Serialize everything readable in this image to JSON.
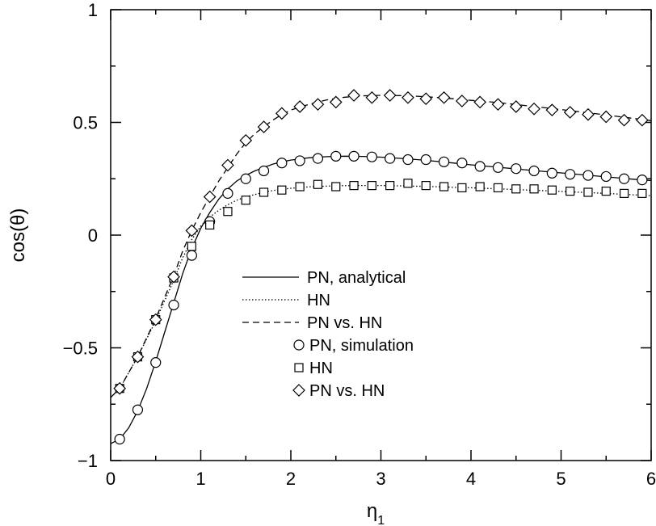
{
  "chart_data": {
    "type": "line",
    "xlabel": "η",
    "xlabel_sub": "1",
    "ylabel": "cos(θ)",
    "xlim": [
      0,
      6
    ],
    "ylim": [
      -1,
      1
    ],
    "xticks": [
      "0",
      "1",
      "2",
      "3",
      "4",
      "5",
      "6"
    ],
    "yticks": [
      "−1",
      "−0.5",
      "0",
      "0.5",
      "1"
    ],
    "grid": false,
    "legend_position": "center",
    "series": [
      {
        "name": "PN, analytical",
        "style": "solid",
        "x": [
          0.0,
          0.1,
          0.2,
          0.3,
          0.4,
          0.5,
          0.6,
          0.7,
          0.8,
          0.9,
          1.0,
          1.1,
          1.2,
          1.3,
          1.4,
          1.5,
          1.6,
          1.7,
          1.8,
          1.9,
          2.0,
          2.2,
          2.4,
          2.6,
          2.8,
          3.0,
          3.2,
          3.4,
          3.6,
          3.8,
          4.0,
          4.3,
          4.6,
          5.0,
          5.4,
          5.8,
          6.0
        ],
        "y": [
          -0.925,
          -0.905,
          -0.855,
          -0.78,
          -0.68,
          -0.56,
          -0.43,
          -0.3,
          -0.17,
          -0.06,
          0.03,
          0.1,
          0.16,
          0.205,
          0.24,
          0.265,
          0.285,
          0.3,
          0.315,
          0.325,
          0.333,
          0.343,
          0.348,
          0.35,
          0.349,
          0.346,
          0.341,
          0.335,
          0.328,
          0.32,
          0.312,
          0.301,
          0.29,
          0.276,
          0.262,
          0.248,
          0.242
        ]
      },
      {
        "name": "HN",
        "style": "dotted",
        "x": [
          0.0,
          0.1,
          0.3,
          0.5,
          0.7,
          0.8,
          0.9,
          1.0,
          1.1,
          1.2,
          1.3,
          1.4,
          1.5,
          1.6,
          1.7,
          1.8,
          2.0,
          2.2,
          2.5,
          2.8,
          3.0,
          3.5,
          4.0,
          4.5,
          5.0,
          5.5,
          6.0
        ],
        "y": [
          -0.72,
          -0.68,
          -0.54,
          -0.38,
          -0.2,
          -0.1,
          -0.02,
          0.04,
          0.08,
          0.11,
          0.135,
          0.155,
          0.17,
          0.18,
          0.19,
          0.198,
          0.208,
          0.214,
          0.219,
          0.22,
          0.22,
          0.216,
          0.21,
          0.202,
          0.194,
          0.185,
          0.175
        ]
      },
      {
        "name": "PN vs. HN",
        "style": "dashed",
        "x": [
          0.0,
          0.1,
          0.3,
          0.5,
          0.7,
          0.8,
          0.9,
          1.0,
          1.1,
          1.2,
          1.3,
          1.4,
          1.5,
          1.6,
          1.7,
          1.8,
          1.9,
          2.0,
          2.2,
          2.4,
          2.6,
          2.8,
          3.0,
          3.2,
          3.4,
          3.6,
          3.8,
          4.0,
          4.3,
          4.6,
          5.0,
          5.4,
          5.8,
          6.0
        ],
        "y": [
          -0.72,
          -0.68,
          -0.54,
          -0.37,
          -0.18,
          -0.07,
          0.02,
          0.1,
          0.17,
          0.24,
          0.3,
          0.36,
          0.41,
          0.45,
          0.48,
          0.51,
          0.535,
          0.555,
          0.58,
          0.6,
          0.612,
          0.618,
          0.62,
          0.619,
          0.616,
          0.611,
          0.605,
          0.598,
          0.588,
          0.575,
          0.557,
          0.538,
          0.518,
          0.508
        ]
      },
      {
        "name": "PN, simulation",
        "marker": "circle",
        "x": [
          0.1,
          0.3,
          0.5,
          0.7,
          0.9,
          1.1,
          1.3,
          1.5,
          1.7,
          1.9,
          2.1,
          2.3,
          2.5,
          2.7,
          2.9,
          3.1,
          3.3,
          3.5,
          3.7,
          3.9,
          4.1,
          4.3,
          4.5,
          4.7,
          4.9,
          5.1,
          5.3,
          5.5,
          5.7,
          5.9
        ],
        "y": [
          -0.905,
          -0.775,
          -0.565,
          -0.31,
          -0.09,
          0.06,
          0.185,
          0.25,
          0.285,
          0.32,
          0.33,
          0.34,
          0.35,
          0.35,
          0.347,
          0.34,
          0.335,
          0.335,
          0.325,
          0.32,
          0.305,
          0.3,
          0.295,
          0.285,
          0.275,
          0.27,
          0.265,
          0.26,
          0.25,
          0.245
        ]
      },
      {
        "name": "HN",
        "marker": "square",
        "x": [
          0.1,
          0.3,
          0.5,
          0.7,
          0.9,
          1.1,
          1.3,
          1.5,
          1.7,
          1.9,
          2.1,
          2.3,
          2.5,
          2.7,
          2.9,
          3.1,
          3.3,
          3.5,
          3.7,
          3.9,
          4.1,
          4.3,
          4.5,
          4.7,
          4.9,
          5.1,
          5.3,
          5.5,
          5.7,
          5.9
        ],
        "y": [
          -0.68,
          -0.54,
          -0.375,
          -0.19,
          -0.05,
          0.045,
          0.105,
          0.155,
          0.19,
          0.2,
          0.215,
          0.225,
          0.215,
          0.22,
          0.22,
          0.22,
          0.23,
          0.22,
          0.215,
          0.21,
          0.215,
          0.21,
          0.205,
          0.205,
          0.2,
          0.195,
          0.19,
          0.195,
          0.185,
          0.185
        ]
      },
      {
        "name": "PN vs. HN",
        "marker": "diamond",
        "x": [
          0.1,
          0.3,
          0.5,
          0.7,
          0.9,
          1.1,
          1.3,
          1.5,
          1.7,
          1.9,
          2.1,
          2.3,
          2.5,
          2.7,
          2.9,
          3.1,
          3.3,
          3.5,
          3.7,
          3.9,
          4.1,
          4.3,
          4.5,
          4.7,
          4.9,
          5.1,
          5.3,
          5.5,
          5.7,
          5.9
        ],
        "y": [
          -0.68,
          -0.54,
          -0.375,
          -0.185,
          0.02,
          0.17,
          0.31,
          0.42,
          0.48,
          0.54,
          0.57,
          0.58,
          0.59,
          0.62,
          0.61,
          0.62,
          0.61,
          0.605,
          0.61,
          0.595,
          0.59,
          0.58,
          0.57,
          0.56,
          0.555,
          0.545,
          0.535,
          0.525,
          0.51,
          0.51
        ]
      }
    ]
  }
}
